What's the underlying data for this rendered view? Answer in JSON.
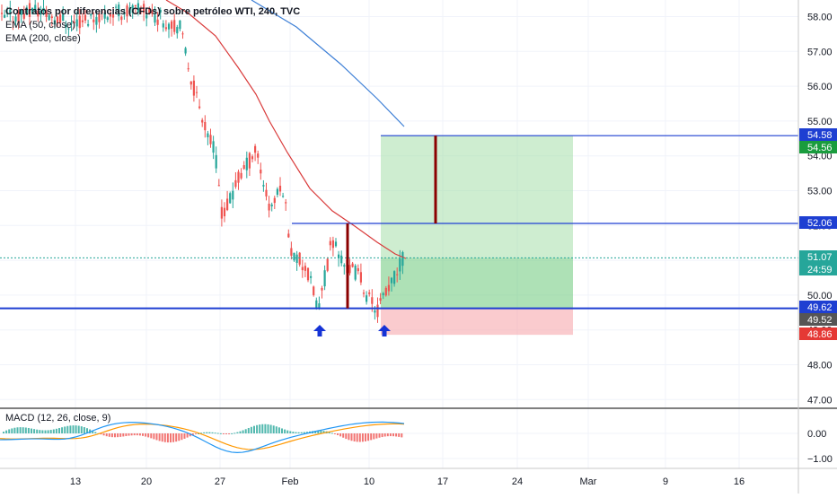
{
  "chart_data": [
    {
      "type": "candlestick",
      "title": "Contratos por diferencias (CFDs) sobre petróleo WTI, 240, TVC",
      "indicators": [
        "EMA (50, close)",
        "EMA (200, close)"
      ],
      "x_tick_labels": [
        "13",
        "20",
        "27",
        "Feb",
        "10",
        "17",
        "24",
        "Mar",
        "9",
        "16"
      ],
      "y_tick_labels": [
        "58.00",
        "57.00",
        "56.00",
        "55.00",
        "54.00",
        "53.00",
        "52.00",
        "51.00",
        "50.00",
        "49.00",
        "48.00",
        "47.00"
      ],
      "y_range": [
        46.85,
        58.3
      ],
      "price_labels": [
        {
          "value": "54.58",
          "color": "#1e3fd2"
        },
        {
          "value": "54.56",
          "color": "#1a9c3e"
        },
        {
          "value": "52.06",
          "color": "#1e3fd2"
        },
        {
          "value": "51.07",
          "color": "#26a69a"
        },
        {
          "value": "24:59",
          "color": "#26a69a"
        },
        {
          "value": "49.62",
          "color": "#1e3fd2"
        },
        {
          "value": "49.52",
          "color": "#555555"
        },
        {
          "value": "48.86",
          "color": "#e53935"
        }
      ],
      "levels": {
        "target": 54.58,
        "neckline": 52.06,
        "support": 49.62,
        "last": 51.07,
        "stop": 48.86
      },
      "annotations": [
        "double-bottom arrows at Feb 3 and Feb 11"
      ],
      "colors": {
        "up": "#26a69a",
        "down": "#ef5350",
        "ema50": "#d93a3a",
        "ema200": "#3d7fd6",
        "level": "#1e3fd2"
      }
    },
    {
      "type": "macd",
      "title": "MACD (12, 26, close, 9)",
      "y_tick_labels": [
        "0.00",
        "−1.00"
      ],
      "colors": {
        "macd": "#2196f3",
        "signal": "#ff9800",
        "hist_up": "#26a69a",
        "hist_down": "#ef5350"
      }
    }
  ]
}
